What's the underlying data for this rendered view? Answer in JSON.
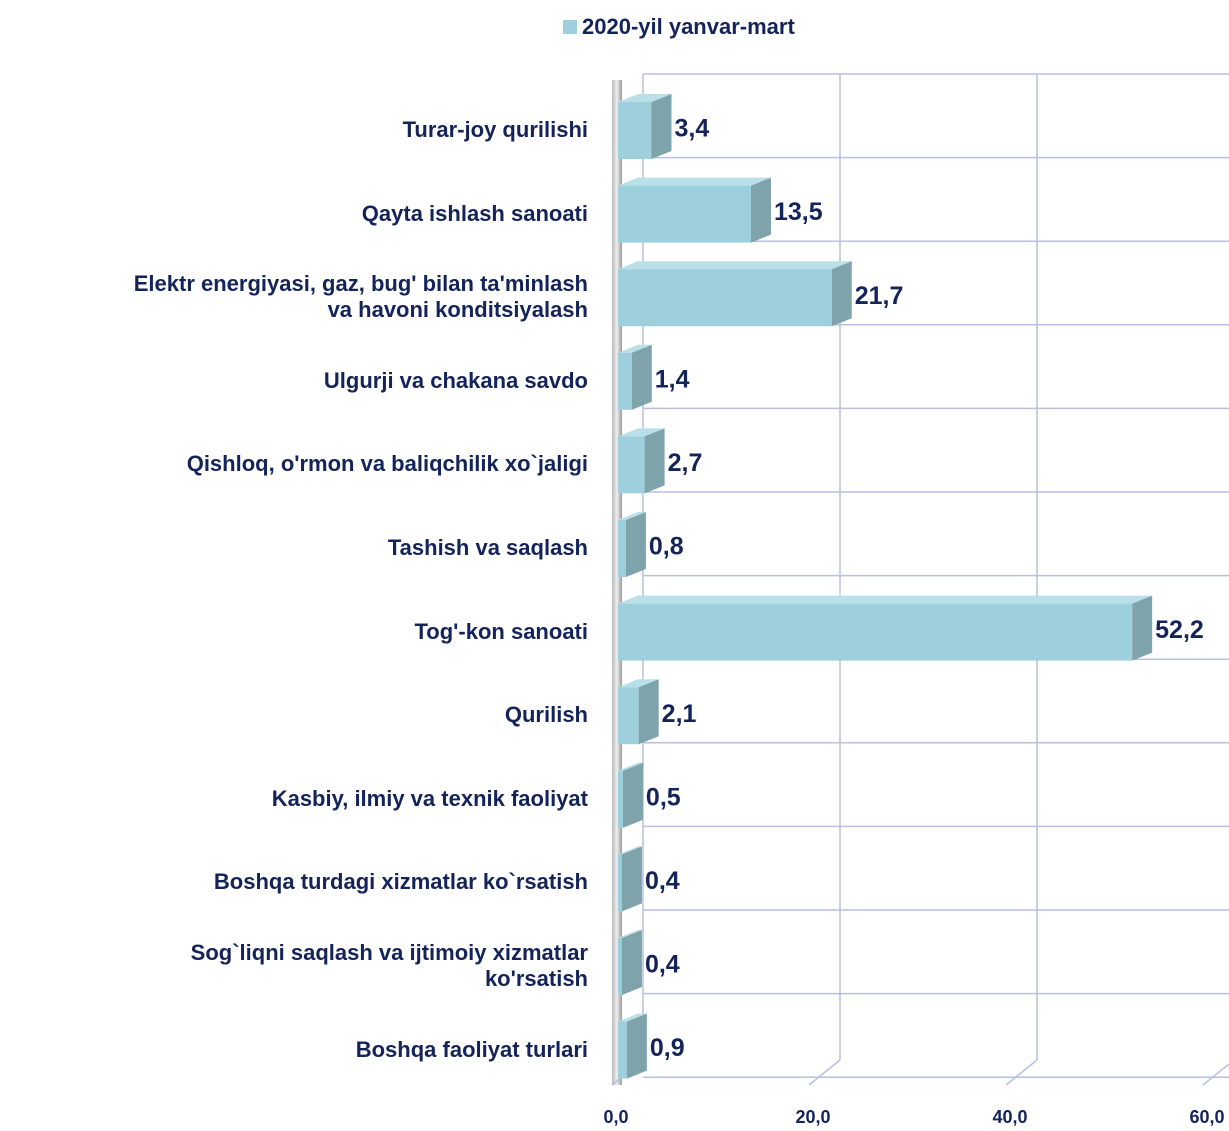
{
  "chart_data": {
    "type": "bar3d_horizontal",
    "series": [
      {
        "name": "2020-yil yanvar-mart",
        "color": "#9dd0dc",
        "values": [
          3.4,
          13.5,
          21.7,
          1.4,
          2.7,
          0.8,
          52.2,
          2.1,
          0.5,
          0.4,
          0.4,
          0.9
        ],
        "value_labels": [
          "3,4",
          "13,5",
          "21,7",
          "1,4",
          "2,7",
          "0,8",
          "52,2",
          "2,1",
          "0,5",
          "0,4",
          "0,4",
          "0,9"
        ]
      }
    ],
    "categories": [
      "Turar-joy qurilishi",
      "Qayta ishlash sanoati",
      "Elektr energiyasi, gaz, bug' bilan ta'minlash\nva havoni konditsiyalash",
      "Ulgurji va chakana savdo",
      "Qishloq, o'rmon va baliqchilik xo`jaligi",
      "Tashish va saqlash",
      "Tog'-kon sanoati",
      "Qurilish",
      "Kasbiy, ilmiy va texnik faoliyat",
      "Boshqa turdagi xizmatlar ko`rsatish",
      "Sog`liqni saqlash va ijtimoiy xizmatlar\nko'rsatish",
      "Boshqa faoliyat turlari"
    ],
    "xlim": [
      0,
      60
    ],
    "xticks": [
      {
        "value": 0,
        "label": "0,0"
      },
      {
        "value": 20,
        "label": "20,0"
      },
      {
        "value": 40,
        "label": "40,0"
      },
      {
        "value": 60,
        "label": "60,0"
      }
    ],
    "grid": true,
    "legend": "top"
  }
}
